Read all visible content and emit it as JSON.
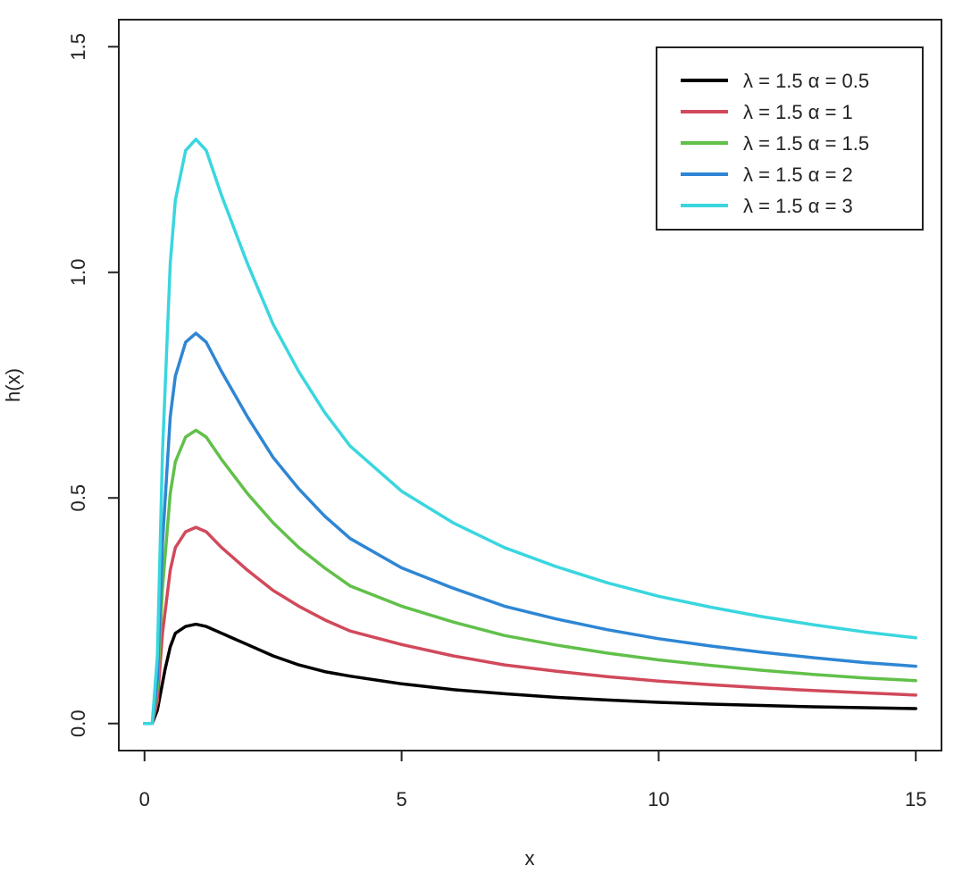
{
  "chart_data": {
    "type": "line",
    "title": "",
    "xlabel": "x",
    "ylabel": "h(x)",
    "xlim": [
      -0.5,
      15.5
    ],
    "ylim": [
      -0.06,
      1.56
    ],
    "x_ticks": [
      0,
      5,
      10,
      15
    ],
    "x_tick_labels": [
      "0",
      "5",
      "10",
      "15"
    ],
    "y_ticks": [
      0,
      0.5,
      1,
      1.5
    ],
    "y_tick_labels": [
      "0.0",
      "0.5",
      "1.0",
      "1.5"
    ],
    "grid": false,
    "legend_position": "top-right",
    "series": [
      {
        "name": "λ = 1.5  α = 0.5",
        "color": "#000000",
        "points": [
          [
            0,
            0
          ],
          [
            0.15,
            0
          ],
          [
            0.25,
            0.03
          ],
          [
            0.4,
            0.12
          ],
          [
            0.5,
            0.17
          ],
          [
            0.6,
            0.2
          ],
          [
            0.8,
            0.215
          ],
          [
            1.0,
            0.22
          ],
          [
            1.2,
            0.215
          ],
          [
            1.5,
            0.2
          ],
          [
            2,
            0.175
          ],
          [
            2.5,
            0.15
          ],
          [
            3,
            0.13
          ],
          [
            3.5,
            0.115
          ],
          [
            4,
            0.105
          ],
          [
            5,
            0.088
          ],
          [
            6,
            0.075
          ],
          [
            7,
            0.066
          ],
          [
            8,
            0.058
          ],
          [
            9,
            0.052
          ],
          [
            10,
            0.047
          ],
          [
            11,
            0.043
          ],
          [
            12,
            0.04
          ],
          [
            13,
            0.037
          ],
          [
            14,
            0.035
          ],
          [
            15,
            0.033
          ]
        ]
      },
      {
        "name": "λ = 1.5  α = 1",
        "color": "#d1495b",
        "points": [
          [
            0,
            0
          ],
          [
            0.15,
            0
          ],
          [
            0.25,
            0.05
          ],
          [
            0.35,
            0.2
          ],
          [
            0.5,
            0.34
          ],
          [
            0.6,
            0.39
          ],
          [
            0.8,
            0.425
          ],
          [
            1.0,
            0.435
          ],
          [
            1.2,
            0.425
          ],
          [
            1.5,
            0.39
          ],
          [
            2,
            0.34
          ],
          [
            2.5,
            0.295
          ],
          [
            3,
            0.26
          ],
          [
            3.5,
            0.23
          ],
          [
            4,
            0.205
          ],
          [
            5,
            0.175
          ],
          [
            6,
            0.15
          ],
          [
            7,
            0.13
          ],
          [
            8,
            0.116
          ],
          [
            9,
            0.104
          ],
          [
            10,
            0.094
          ],
          [
            11,
            0.086
          ],
          [
            12,
            0.079
          ],
          [
            13,
            0.073
          ],
          [
            14,
            0.068
          ],
          [
            15,
            0.063
          ]
        ]
      },
      {
        "name": "λ = 1.5  α = 1.5",
        "color": "#61c04a",
        "points": [
          [
            0,
            0
          ],
          [
            0.15,
            0
          ],
          [
            0.25,
            0.08
          ],
          [
            0.35,
            0.3
          ],
          [
            0.5,
            0.51
          ],
          [
            0.6,
            0.58
          ],
          [
            0.8,
            0.635
          ],
          [
            1.0,
            0.65
          ],
          [
            1.2,
            0.635
          ],
          [
            1.5,
            0.585
          ],
          [
            2,
            0.51
          ],
          [
            2.5,
            0.445
          ],
          [
            3,
            0.39
          ],
          [
            3.5,
            0.345
          ],
          [
            4,
            0.305
          ],
          [
            5,
            0.26
          ],
          [
            6,
            0.225
          ],
          [
            7,
            0.195
          ],
          [
            8,
            0.174
          ],
          [
            9,
            0.156
          ],
          [
            10,
            0.141
          ],
          [
            11,
            0.129
          ],
          [
            12,
            0.118
          ],
          [
            13,
            0.109
          ],
          [
            14,
            0.101
          ],
          [
            15,
            0.095
          ]
        ]
      },
      {
        "name": "λ = 1.5  α = 2",
        "color": "#2e86d4",
        "points": [
          [
            0,
            0
          ],
          [
            0.15,
            0
          ],
          [
            0.25,
            0.1
          ],
          [
            0.35,
            0.4
          ],
          [
            0.5,
            0.68
          ],
          [
            0.6,
            0.77
          ],
          [
            0.8,
            0.845
          ],
          [
            1.0,
            0.865
          ],
          [
            1.2,
            0.845
          ],
          [
            1.5,
            0.78
          ],
          [
            2,
            0.68
          ],
          [
            2.5,
            0.59
          ],
          [
            3,
            0.52
          ],
          [
            3.5,
            0.46
          ],
          [
            4,
            0.41
          ],
          [
            5,
            0.345
          ],
          [
            6,
            0.3
          ],
          [
            7,
            0.26
          ],
          [
            8,
            0.232
          ],
          [
            9,
            0.208
          ],
          [
            10,
            0.188
          ],
          [
            11,
            0.172
          ],
          [
            12,
            0.158
          ],
          [
            13,
            0.146
          ],
          [
            14,
            0.135
          ],
          [
            15,
            0.127
          ]
        ]
      },
      {
        "name": "λ = 1.5  α = 3",
        "color": "#3ad6df",
        "points": [
          [
            0,
            0
          ],
          [
            0.15,
            0
          ],
          [
            0.25,
            0.15
          ],
          [
            0.35,
            0.6
          ],
          [
            0.5,
            1.02
          ],
          [
            0.6,
            1.16
          ],
          [
            0.8,
            1.27
          ],
          [
            1.0,
            1.295
          ],
          [
            1.2,
            1.27
          ],
          [
            1.5,
            1.17
          ],
          [
            2,
            1.02
          ],
          [
            2.5,
            0.885
          ],
          [
            3,
            0.78
          ],
          [
            3.5,
            0.69
          ],
          [
            4,
            0.615
          ],
          [
            5,
            0.515
          ],
          [
            6,
            0.445
          ],
          [
            7,
            0.39
          ],
          [
            8,
            0.348
          ],
          [
            9,
            0.312
          ],
          [
            10,
            0.282
          ],
          [
            11,
            0.258
          ],
          [
            12,
            0.237
          ],
          [
            13,
            0.219
          ],
          [
            14,
            0.203
          ],
          [
            15,
            0.19
          ]
        ]
      }
    ]
  }
}
